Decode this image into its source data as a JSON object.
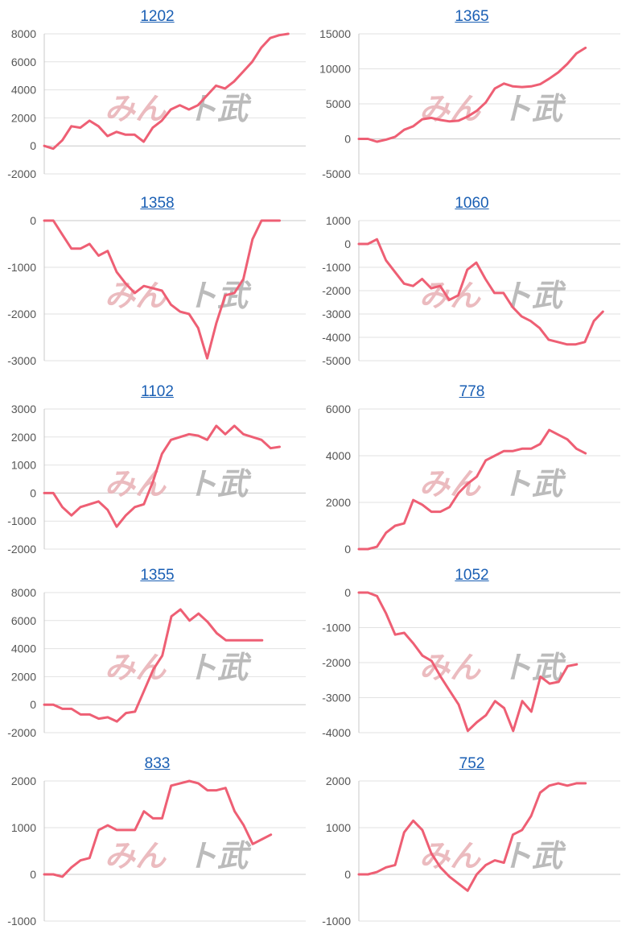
{
  "watermark": {
    "part1": "みん",
    "part2": "ト武"
  },
  "colors": {
    "line": "#ee5f74",
    "title": "#1a5fb4",
    "grid": "#e2e2e2"
  },
  "chart_data": [
    {
      "type": "line",
      "title": "1202",
      "ylim": [
        -2000,
        8000
      ],
      "ticks": [
        8000,
        6000,
        4000,
        2000,
        0,
        -2000
      ],
      "values": [
        0,
        -200,
        400,
        1400,
        1300,
        1800,
        1400,
        700,
        1000,
        800,
        800,
        300,
        1300,
        1800,
        2600,
        2900,
        2600,
        2900,
        3600,
        4300,
        4100,
        4600,
        5300,
        6000,
        7000,
        7700,
        7900,
        8000
      ]
    },
    {
      "type": "line",
      "title": "1365",
      "ylim": [
        -5000,
        15000
      ],
      "ticks": [
        15000,
        10000,
        5000,
        0,
        -5000
      ],
      "values": [
        0,
        0,
        -400,
        -100,
        300,
        1300,
        1800,
        2800,
        3000,
        2700,
        2500,
        2600,
        3200,
        4000,
        5200,
        7200,
        7900,
        7500,
        7400,
        7500,
        7800,
        8600,
        9500,
        10700,
        12200,
        13000
      ]
    },
    {
      "type": "line",
      "title": "1358",
      "ylim": [
        -3000,
        0
      ],
      "ticks": [
        0,
        -1000,
        -2000,
        -3000
      ],
      "values": [
        0,
        0,
        -300,
        -600,
        -600,
        -500,
        -750,
        -650,
        -1100,
        -1350,
        -1550,
        -1400,
        -1450,
        -1500,
        -1800,
        -1950,
        -2000,
        -2300,
        -2950,
        -2200,
        -1600,
        -1550,
        -1250,
        -400,
        0,
        0,
        0
      ]
    },
    {
      "type": "line",
      "title": "1060",
      "ylim": [
        -5000,
        1000
      ],
      "ticks": [
        1000,
        0,
        -1000,
        -2000,
        -3000,
        -4000,
        -5000
      ],
      "values": [
        0,
        0,
        200,
        -700,
        -1200,
        -1700,
        -1800,
        -1500,
        -1900,
        -1800,
        -2400,
        -2200,
        -1100,
        -800,
        -1500,
        -2100,
        -2100,
        -2700,
        -3100,
        -3300,
        -3600,
        -4100,
        -4200,
        -4300,
        -4300,
        -4200,
        -3300,
        -2900
      ]
    },
    {
      "type": "line",
      "title": "1102",
      "ylim": [
        -2000,
        3000
      ],
      "ticks": [
        3000,
        2000,
        1000,
        0,
        -1000,
        -2000
      ],
      "values": [
        0,
        0,
        -500,
        -800,
        -500,
        -400,
        -300,
        -600,
        -1200,
        -800,
        -500,
        -400,
        400,
        1400,
        1900,
        2000,
        2100,
        2050,
        1900,
        2400,
        2100,
        2400,
        2100,
        2000,
        1900,
        1600,
        1650
      ]
    },
    {
      "type": "line",
      "title": "778",
      "ylim": [
        0,
        6000
      ],
      "ticks": [
        6000,
        4000,
        2000,
        0
      ],
      "values": [
        0,
        0,
        100,
        700,
        1000,
        1100,
        2100,
        1900,
        1600,
        1600,
        1800,
        2400,
        2800,
        3100,
        3800,
        4000,
        4200,
        4200,
        4300,
        4300,
        4500,
        5100,
        4900,
        4700,
        4300,
        4100
      ]
    },
    {
      "type": "line",
      "title": "1355",
      "ylim": [
        -2000,
        8000
      ],
      "ticks": [
        8000,
        6000,
        4000,
        2000,
        0,
        -2000
      ],
      "values": [
        0,
        0,
        -300,
        -300,
        -700,
        -700,
        -1000,
        -900,
        -1200,
        -600,
        -500,
        1000,
        2500,
        3500,
        6300,
        6800,
        6000,
        6500,
        5900,
        5100,
        4600,
        4600,
        4600,
        4600,
        4600
      ]
    },
    {
      "type": "line",
      "title": "1052",
      "ylim": [
        -4000,
        0
      ],
      "ticks": [
        0,
        -1000,
        -2000,
        -3000,
        -4000
      ],
      "values": [
        0,
        0,
        -100,
        -600,
        -1200,
        -1150,
        -1450,
        -1800,
        -1950,
        -2400,
        -2800,
        -3200,
        -3950,
        -3700,
        -3500,
        -3100,
        -3300,
        -3950,
        -3100,
        -3400,
        -2400,
        -2600,
        -2550,
        -2100,
        -2050
      ]
    },
    {
      "type": "line",
      "title": "833",
      "ylim": [
        -1000,
        2000
      ],
      "ticks": [
        2000,
        1000,
        0,
        -1000
      ],
      "values": [
        0,
        0,
        -50,
        150,
        300,
        350,
        950,
        1050,
        950,
        950,
        950,
        1350,
        1200,
        1200,
        1900,
        1950,
        2000,
        1950,
        1800,
        1800,
        1850,
        1350,
        1050,
        650,
        750,
        850
      ]
    },
    {
      "type": "line",
      "title": "752",
      "ylim": [
        -1000,
        2000
      ],
      "ticks": [
        2000,
        1000,
        0,
        -1000
      ],
      "values": [
        0,
        0,
        50,
        150,
        200,
        900,
        1150,
        950,
        450,
        150,
        -50,
        -200,
        -350,
        0,
        200,
        300,
        250,
        850,
        950,
        1250,
        1750,
        1900,
        1950,
        1900,
        1950,
        1950
      ]
    }
  ]
}
